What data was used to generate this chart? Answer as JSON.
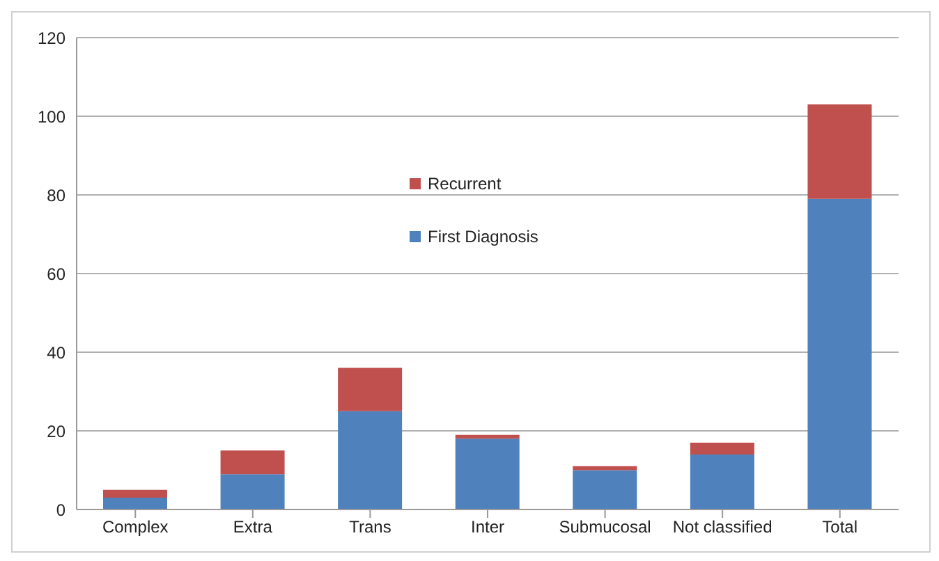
{
  "chart_data": {
    "type": "bar",
    "stacked": true,
    "categories": [
      "Complex",
      "Extra",
      "Trans",
      "Inter",
      "Submucosal",
      "Not classified",
      "Total"
    ],
    "series": [
      {
        "name": "First Diagnosis",
        "color": "#4f81bd",
        "values": [
          3,
          9,
          25,
          18,
          10,
          14,
          79
        ]
      },
      {
        "name": "Recurrent",
        "color": "#c0504d",
        "values": [
          2,
          6,
          11,
          1,
          1,
          3,
          24
        ]
      }
    ],
    "ylim": [
      0,
      120
    ],
    "yticks": [
      0,
      20,
      40,
      60,
      80,
      100,
      120
    ],
    "grid": "y",
    "legend": "top"
  }
}
